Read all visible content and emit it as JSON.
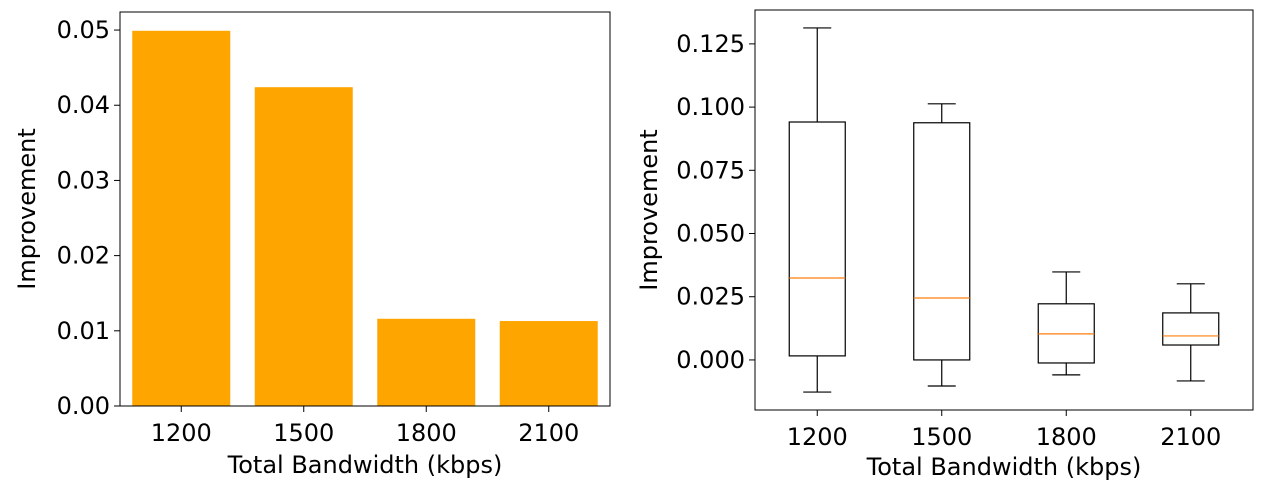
{
  "chart_data": [
    {
      "type": "bar",
      "xlabel": "Total Bandwidth (kbps)",
      "ylabel": "Improvement",
      "categories": [
        "1200",
        "1500",
        "1800",
        "2100"
      ],
      "values": [
        0.0499,
        0.0424,
        0.0116,
        0.0113
      ],
      "ylim": [
        0,
        0.0524
      ],
      "yticks": [
        "0.00",
        "0.01",
        "0.02",
        "0.03",
        "0.04",
        "0.05"
      ],
      "color": "#FFA500",
      "grid": false
    },
    {
      "type": "box",
      "xlabel": "Total Bandwidth (kbps)",
      "ylabel": "Improvement",
      "categories": [
        "1200",
        "1500",
        "1800",
        "2100"
      ],
      "boxes": [
        {
          "whislo": -0.0127,
          "q1": 0.0016,
          "med": 0.0324,
          "q3": 0.0941,
          "whishi": 0.1313
        },
        {
          "whislo": -0.0103,
          "q1": 0.0,
          "med": 0.0245,
          "q3": 0.0938,
          "whishi": 0.1013
        },
        {
          "whislo": -0.0059,
          "q1": -0.0012,
          "med": 0.0103,
          "q3": 0.0222,
          "whishi": 0.0348
        },
        {
          "whislo": -0.0083,
          "q1": 0.0059,
          "med": 0.0095,
          "q3": 0.0186,
          "whishi": 0.0301
        }
      ],
      "ylim": [
        -0.0198,
        0.1384
      ],
      "yticks": [
        "0.000",
        "0.025",
        "0.050",
        "0.075",
        "0.100",
        "0.125"
      ],
      "median_color": "#FF7F0E",
      "grid": false
    }
  ]
}
